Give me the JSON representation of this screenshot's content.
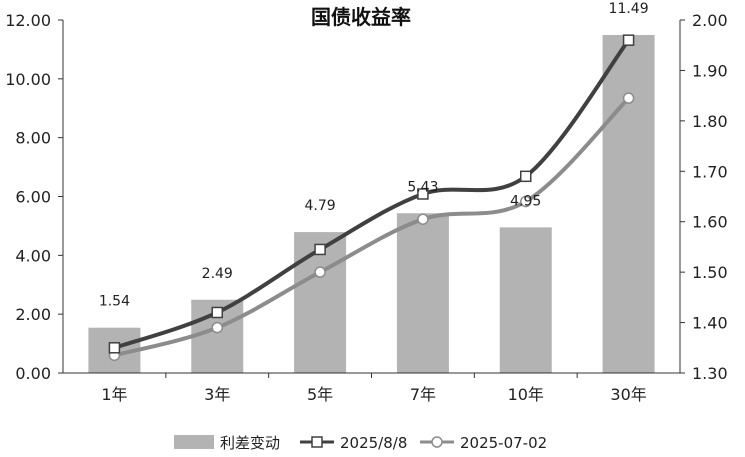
{
  "chart_data": {
    "type": "bar",
    "title": "国债收益率",
    "categories": [
      "1年",
      "3年",
      "5年",
      "7年",
      "10年",
      "30年"
    ],
    "left_axis": {
      "ticks": [
        "0.00",
        "2.00",
        "4.00",
        "6.00",
        "8.00",
        "10.00",
        "12.00"
      ],
      "range": [
        0,
        12
      ]
    },
    "right_axis": {
      "ticks": [
        "1.30",
        "1.40",
        "1.50",
        "1.60",
        "1.70",
        "1.80",
        "1.90",
        "2.00"
      ],
      "range": [
        1.3,
        2.0
      ]
    },
    "bar_series": {
      "name": "利差变动",
      "axis": "left",
      "values": [
        1.54,
        2.49,
        4.79,
        5.43,
        4.95,
        11.49
      ],
      "labels": [
        "1.54",
        "2.49",
        "4.79",
        "5.43",
        "4.95",
        "11.49"
      ]
    },
    "line_series": [
      {
        "name": "2025/8/8",
        "axis": "right",
        "values": [
          1.35,
          1.42,
          1.545,
          1.655,
          1.69,
          1.96
        ]
      },
      {
        "name": "2025-07-02",
        "axis": "right",
        "values": [
          1.335,
          1.39,
          1.5,
          1.605,
          1.64,
          1.845
        ]
      }
    ],
    "legend_position": "bottom",
    "grid": false,
    "colors": {
      "bar": "#b3b3b3",
      "line1": "#404040",
      "line2": "#8c8c8c",
      "axis": "#333333"
    }
  }
}
